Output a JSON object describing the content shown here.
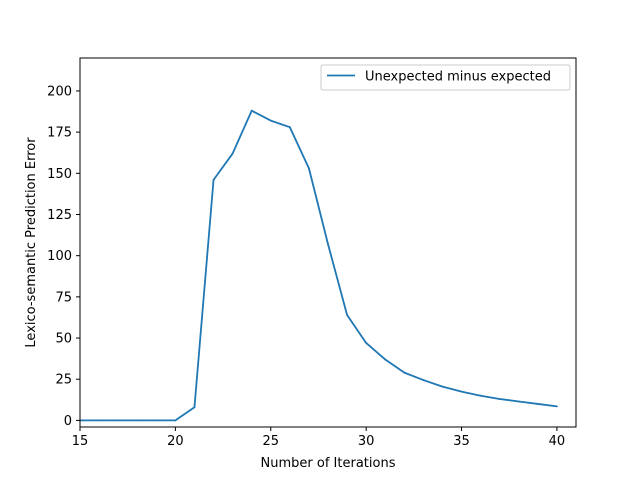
{
  "chart_data": {
    "type": "line",
    "title": "",
    "xlabel": "Number of Iterations",
    "ylabel": "Lexico-semantic Prediction Error",
    "xlim": [
      15,
      41
    ],
    "ylim": [
      -4,
      220
    ],
    "x_ticks": [
      15,
      20,
      25,
      30,
      35,
      40
    ],
    "y_ticks": [
      0,
      25,
      50,
      75,
      100,
      125,
      150,
      175,
      200
    ],
    "grid": false,
    "legend_position": "top-right",
    "series": [
      {
        "name": "Unexpected minus expected",
        "color": "#1f77b4",
        "x": [
          15,
          16,
          17,
          18,
          19,
          20,
          21,
          22,
          23,
          24,
          25,
          26,
          27,
          28,
          29,
          30,
          31,
          32,
          33,
          34,
          35,
          36,
          37,
          38,
          39,
          40
        ],
        "y": [
          0,
          0,
          0,
          0,
          0,
          0,
          8,
          146,
          162,
          188,
          182,
          178,
          153,
          107,
          64,
          47,
          37,
          29,
          24.5,
          20.5,
          17.5,
          15,
          13,
          11.5,
          10,
          8.5
        ]
      }
    ]
  }
}
